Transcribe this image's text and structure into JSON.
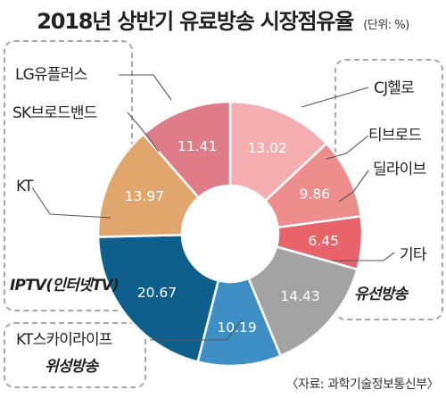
{
  "title": "2018년 상반기 유료방송 시장점유율",
  "unit": "(단위: %)",
  "source": "〈자료: 과학기술정보통신부〉",
  "chart_data": {
    "type": "pie",
    "title": "2018년 상반기 유료방송 시장점유율",
    "unit": "%",
    "slices": [
      {
        "label": "CJ헬로",
        "value": 13.02,
        "value_text": "13.02",
        "color": "#f4aeb0",
        "group": "유선방송"
      },
      {
        "label": "티브로드",
        "value": 9.86,
        "value_text": "9.86",
        "color": "#ed8e8d",
        "group": "유선방송"
      },
      {
        "label": "딜라이브",
        "value": 6.45,
        "value_text": "6.45",
        "color": "#e9636a",
        "group": "유선방송"
      },
      {
        "label": "기타",
        "value": 14.43,
        "value_text": "14.43",
        "color": "#a3a3a3",
        "group": "유선방송"
      },
      {
        "label": "KT스카이라이프",
        "value": 10.19,
        "value_text": "10.19",
        "color": "#3d8fc6",
        "group": "위성방송"
      },
      {
        "label": "KT",
        "value": 20.67,
        "value_text": "20.67",
        "color": "#0f5f8c",
        "group": "IPTV(인터넷TV)"
      },
      {
        "label": "SK브로드밴드",
        "value": 13.97,
        "value_text": "13.97",
        "color": "#e1a66b",
        "group": "IPTV(인터넷TV)"
      },
      {
        "label": "LG유플러스",
        "value": 11.41,
        "value_text": "11.41",
        "color": "#df7c88",
        "group": "IPTV(인터넷TV)"
      }
    ],
    "groups": [
      "유선방송",
      "위성방송",
      "IPTV(인터넷TV)"
    ]
  }
}
